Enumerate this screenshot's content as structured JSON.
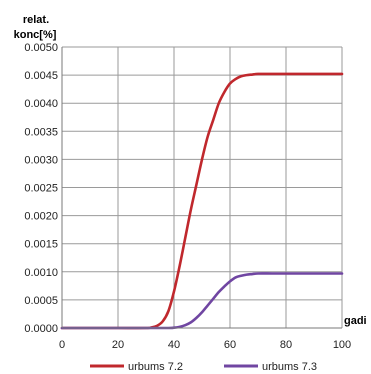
{
  "chart_data": {
    "type": "line",
    "ylabel": [
      "relat.",
      "konc[%]"
    ],
    "xlabel": "gadi",
    "xlim": [
      0,
      100
    ],
    "ylim": [
      0,
      0.005
    ],
    "xticks": [
      0,
      20,
      40,
      60,
      80,
      100
    ],
    "xtick_labels": [
      "0",
      "20",
      "40",
      "60",
      "80",
      "100"
    ],
    "yticks": [
      0,
      0.0005,
      0.001,
      0.0015,
      0.002,
      0.0025,
      0.003,
      0.0035,
      0.004,
      0.0045,
      0.005
    ],
    "ytick_labels": [
      "0.0000",
      "0.0005",
      "0.0010",
      "0.0015",
      "0.0020",
      "0.0025",
      "0.0030",
      "0.0035",
      "0.0040",
      "0.0045",
      "0.0050"
    ],
    "grid": true,
    "legend_position": "bottom",
    "series": [
      {
        "name": "urbums 7.2",
        "color": "#c0282d",
        "x": [
          0,
          10,
          20,
          30,
          32,
          34,
          36,
          38,
          40,
          42,
          44,
          46,
          48,
          50,
          52,
          54,
          56,
          58,
          60,
          62,
          64,
          66,
          68,
          70,
          75,
          80,
          90,
          100
        ],
        "values": [
          0,
          0,
          0,
          0,
          1e-05,
          4e-05,
          0.00012,
          0.0003,
          0.00065,
          0.0011,
          0.0016,
          0.0021,
          0.00255,
          0.003,
          0.0034,
          0.0037,
          0.004,
          0.0042,
          0.00435,
          0.00443,
          0.00448,
          0.0045,
          0.00451,
          0.00452,
          0.00452,
          0.00452,
          0.00452,
          0.00452
        ]
      },
      {
        "name": "urbums 7.3",
        "color": "#7046a2",
        "x": [
          0,
          10,
          20,
          30,
          38,
          40,
          42,
          44,
          46,
          48,
          50,
          52,
          54,
          56,
          58,
          60,
          62,
          64,
          66,
          68,
          70,
          75,
          80,
          90,
          100
        ],
        "values": [
          0,
          0,
          0,
          0,
          0,
          5e-06,
          2e-05,
          5e-05,
          0.0001,
          0.00018,
          0.00028,
          0.0004,
          0.00052,
          0.00064,
          0.00074,
          0.00083,
          0.0009,
          0.00093,
          0.00095,
          0.00096,
          0.00097,
          0.00097,
          0.00097,
          0.00097,
          0.00097
        ]
      }
    ]
  }
}
